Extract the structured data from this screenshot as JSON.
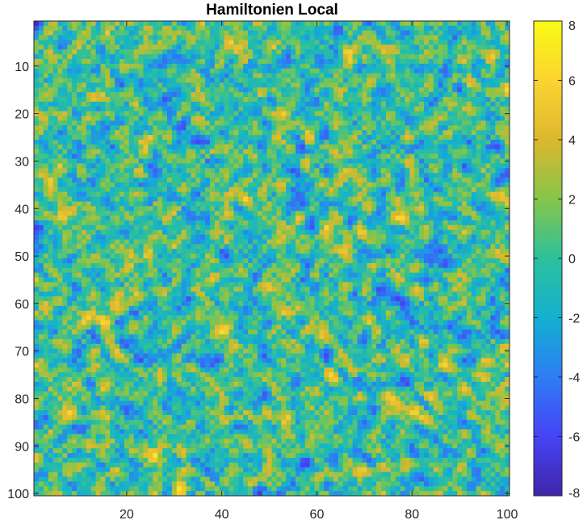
{
  "chart_data": {
    "type": "heatmap",
    "title": "Hamiltonien Local",
    "xlabel": "",
    "ylabel": "",
    "grid_size": [
      100,
      100
    ],
    "x_range": [
      0.5,
      100.5
    ],
    "y_range": [
      0.5,
      100.5
    ],
    "y_reversed": true,
    "x_ticks": [
      20,
      40,
      60,
      80,
      100
    ],
    "x_tick_labels": [
      "20",
      "40",
      "60",
      "80",
      "100"
    ],
    "y_ticks": [
      10,
      20,
      30,
      40,
      50,
      60,
      70,
      80,
      90,
      100
    ],
    "y_tick_labels": [
      "10",
      "20",
      "30",
      "40",
      "50",
      "60",
      "70",
      "80",
      "90",
      "100"
    ],
    "color_range": [
      -8,
      8
    ],
    "colorbar_ticks": [
      8,
      6,
      4,
      2,
      0,
      -2,
      -4,
      -6,
      -8
    ],
    "colorbar_tick_labels": [
      "8",
      "6",
      "4",
      "2",
      "0",
      "-2",
      "-4",
      "-6",
      "-8"
    ],
    "colormap": "parula",
    "colormap_stops": [
      "#3e26a8",
      "#4743f6",
      "#2d7df4",
      "#13b0d0",
      "#2dc09c",
      "#86c549",
      "#dcb82e",
      "#fcd331",
      "#f9fb15"
    ],
    "value_distribution": "spatially noisy field, mostly between -6 and 6",
    "grid": false,
    "legend": "colorbar-right"
  }
}
